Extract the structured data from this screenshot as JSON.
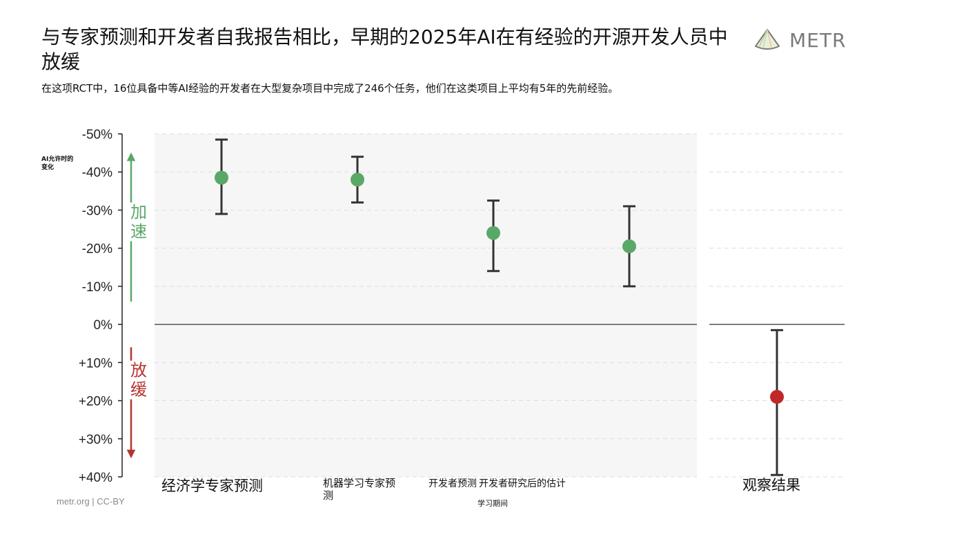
{
  "title": "与专家预测和开发者自我报告相比，早期的2025年AI在有经验的开源开发人员中放缓",
  "subtitle": "在这项RCT中，16位具备中等AI经验的开发者在大型复杂项目中完成了246个任务，他们在这类项目上平均有5年的先前经验。",
  "logo": {
    "text": "METR",
    "icon": "metr-fan-logo-icon"
  },
  "footer": "metr.org  |  CC-BY",
  "colors": {
    "speedup": "#5aa867",
    "slowdown": "#b5332e",
    "observed_point": "#c0282a",
    "error_bar": "#333333",
    "panel_bg": "#f6f6f6"
  },
  "chart_data": {
    "type": "scatter",
    "ylabel": "AI允许时的变化",
    "ylim": [
      -50,
      40
    ],
    "yticks": [
      -50,
      -40,
      -30,
      -20,
      -10,
      0,
      10,
      20,
      30,
      40
    ],
    "ytick_labels": [
      "-50%",
      "-40%",
      "-30%",
      "-20%",
      "-10%",
      "0%",
      "+10%",
      "+20%",
      "+30%",
      "+40%"
    ],
    "y_inverted": true,
    "grid": true,
    "annotations": {
      "speedup": "加速",
      "slowdown": "放缓"
    },
    "group_label": "学习期间",
    "points": [
      {
        "label": "经济学专家预测",
        "value": -38.5,
        "low": -48.5,
        "high": -29,
        "panel": "forecast"
      },
      {
        "label": "机器学习专家预测",
        "value": -38,
        "low": -44,
        "high": -32,
        "panel": "forecast"
      },
      {
        "label": "开发者预测",
        "value": -24,
        "low": -32.5,
        "high": -14,
        "panel": "forecast"
      },
      {
        "label": "开发者研究后的估计",
        "value": -20.5,
        "low": -31,
        "high": -10,
        "panel": "forecast"
      },
      {
        "label": "观察结果",
        "value": 19,
        "low": 1.5,
        "high": 39.5,
        "panel": "observed"
      }
    ]
  }
}
